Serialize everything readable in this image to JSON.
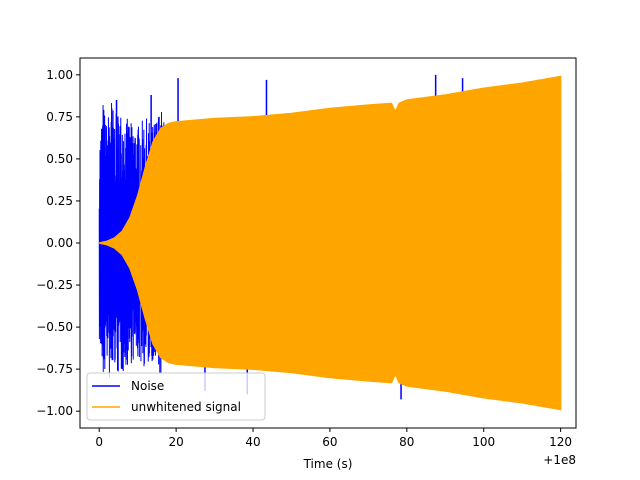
{
  "chart_data": {
    "type": "line",
    "title": "",
    "xlabel": "Time (s)",
    "ylabel": "",
    "x_offset_label": "+1e8",
    "xlim": [
      -5,
      124
    ],
    "ylim": [
      -1.1,
      1.1
    ],
    "x_ticks": [
      0,
      20,
      40,
      60,
      80,
      100,
      120
    ],
    "x_tick_labels": [
      "0",
      "20",
      "40",
      "60",
      "80",
      "100",
      "120"
    ],
    "y_ticks": [
      -1.0,
      -0.75,
      -0.5,
      -0.25,
      0.0,
      0.25,
      0.5,
      0.75,
      1.0
    ],
    "y_tick_labels": [
      "−1.00",
      "−0.75",
      "−0.50",
      "−0.25",
      "0.00",
      "0.25",
      "0.50",
      "0.75",
      "1.00"
    ],
    "grid": false,
    "legend_position": "lower-left",
    "series": [
      {
        "name": "Noise",
        "color": "#0000ff",
        "envelope_x": [
          0,
          1,
          2,
          3,
          4,
          5,
          6,
          8,
          10,
          12,
          14,
          16,
          18,
          20,
          30,
          40,
          60,
          80,
          100,
          120
        ],
        "envelope_max": [
          0.58,
          0.85,
          0.7,
          0.9,
          0.75,
          0.8,
          0.78,
          0.72,
          0.7,
          0.75,
          0.7,
          0.82,
          0.6,
          0.55,
          0.62,
          0.58,
          0.55,
          0.6,
          0.62,
          0.6
        ],
        "spikes": [
          {
            "x": 4.5,
            "y": 0.85
          },
          {
            "x": 13.5,
            "y": 0.88
          },
          {
            "x": 20.5,
            "y": 0.98
          },
          {
            "x": 43.5,
            "y": 0.97
          },
          {
            "x": 87.5,
            "y": 1.0
          },
          {
            "x": 94.5,
            "y": 0.98
          },
          {
            "x": 78.5,
            "y": -0.93
          },
          {
            "x": 27.5,
            "y": -0.88
          },
          {
            "x": 38.5,
            "y": -0.9
          }
        ]
      },
      {
        "name": "unwhitened signal",
        "color": "#ffa500",
        "envelope_x": [
          0,
          2,
          4,
          6,
          8,
          10,
          12,
          14,
          16,
          18,
          20,
          25,
          30,
          40,
          50,
          60,
          70,
          76,
          77,
          78,
          80,
          90,
          100,
          110,
          120
        ],
        "envelope": [
          0.0,
          0.01,
          0.03,
          0.07,
          0.15,
          0.28,
          0.45,
          0.6,
          0.68,
          0.71,
          0.72,
          0.73,
          0.74,
          0.75,
          0.77,
          0.8,
          0.82,
          0.83,
          0.78,
          0.83,
          0.85,
          0.88,
          0.92,
          0.95,
          0.99
        ]
      }
    ]
  }
}
